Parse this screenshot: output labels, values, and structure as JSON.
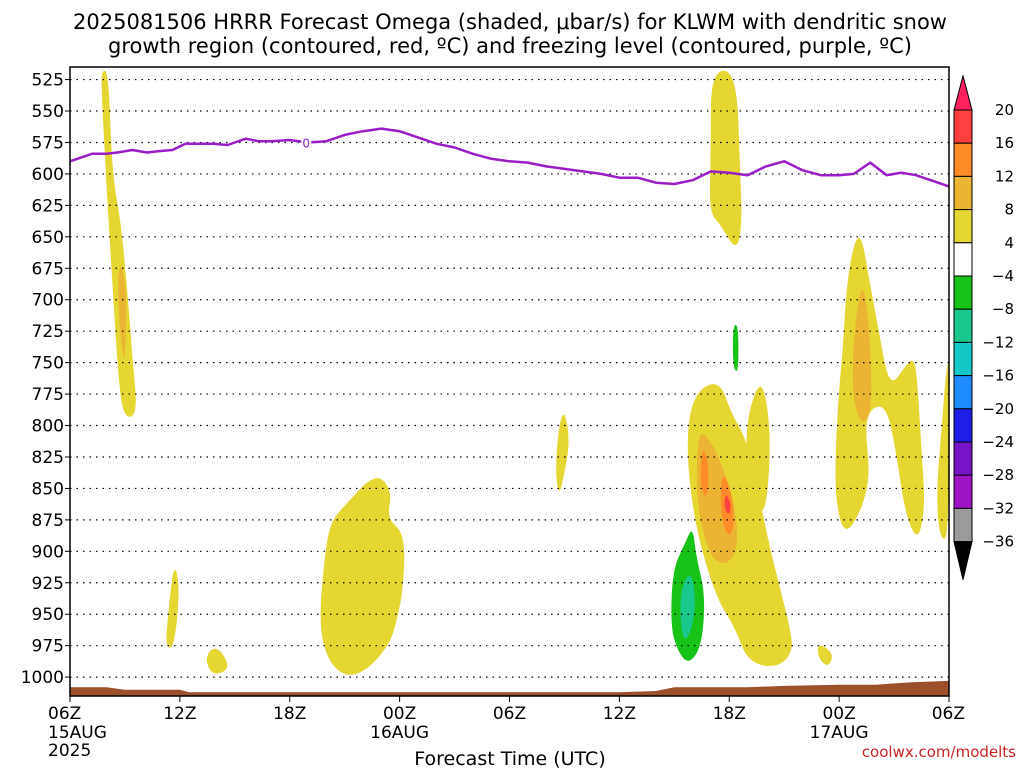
{
  "chart_data": {
    "type": "heatmap",
    "title_line1": "2025081506 HRRR Forecast Omega (shaded, μbar/s) for KLWM with dendritic snow",
    "title_line2": "growth region (contoured, red, ºC) and freezing level (contoured, purple, ºC)",
    "xlabel": "Forecast Time (UTC)",
    "credit": "coolwx.com/modelts",
    "y_ticks": [
      "525",
      "550",
      "575",
      "600",
      "625",
      "650",
      "675",
      "700",
      "725",
      "750",
      "775",
      "800",
      "825",
      "850",
      "875",
      "900",
      "925",
      "950",
      "975",
      "1000"
    ],
    "ylim": [
      515,
      1015
    ],
    "xlim_hours": [
      0,
      48
    ],
    "x_ticks": [
      {
        "h": 0,
        "label": "06Z",
        "sub1": "15AUG",
        "sub2": "2025"
      },
      {
        "h": 6,
        "label": "12Z",
        "sub1": "",
        "sub2": ""
      },
      {
        "h": 12,
        "label": "18Z",
        "sub1": "",
        "sub2": ""
      },
      {
        "h": 18,
        "label": "00Z",
        "sub1": "16AUG",
        "sub2": ""
      },
      {
        "h": 24,
        "label": "06Z",
        "sub1": "",
        "sub2": ""
      },
      {
        "h": 30,
        "label": "12Z",
        "sub1": "",
        "sub2": ""
      },
      {
        "h": 36,
        "label": "18Z",
        "sub1": "",
        "sub2": ""
      },
      {
        "h": 42,
        "label": "00Z",
        "sub1": "17AUG",
        "sub2": ""
      },
      {
        "h": 48,
        "label": "06Z",
        "sub1": "",
        "sub2": ""
      }
    ],
    "colorbar": {
      "levels": [
        "20",
        "16",
        "12",
        "8",
        "4",
        "−4",
        "−8",
        "−12",
        "−16",
        "−20",
        "−24",
        "−28",
        "−32",
        "−36"
      ],
      "colors": [
        "#ff2060",
        "#ff4040",
        "#ff8c28",
        "#ebb432",
        "#e6d632",
        "#ffffff",
        "#16c316",
        "#18c88c",
        "#14c8c8",
        "#1e8cff",
        "#1e1ee6",
        "#7814c8",
        "#a014c8",
        "#9b9b9b",
        "#000000"
      ]
    },
    "freezing_level": {
      "label": "0",
      "label_at": {
        "h": 12.9,
        "p": 575
      },
      "color": "#9a1dc8",
      "points": [
        [
          0,
          590
        ],
        [
          0.6,
          587
        ],
        [
          1.2,
          584
        ],
        [
          2,
          584
        ],
        [
          2.6,
          583
        ],
        [
          3.4,
          581
        ],
        [
          4.2,
          583
        ],
        [
          4.8,
          582
        ],
        [
          5.6,
          581
        ],
        [
          6.3,
          576
        ],
        [
          7,
          576
        ],
        [
          7.8,
          576
        ],
        [
          8.6,
          577
        ],
        [
          9.6,
          572
        ],
        [
          10.3,
          574
        ],
        [
          11,
          574
        ],
        [
          12,
          573
        ],
        [
          13,
          575
        ],
        [
          14,
          574
        ],
        [
          15,
          569
        ],
        [
          16,
          566
        ],
        [
          17,
          564
        ],
        [
          18,
          566
        ],
        [
          19,
          571
        ],
        [
          20,
          576
        ],
        [
          21,
          579
        ],
        [
          22,
          584
        ],
        [
          23,
          588
        ],
        [
          24,
          590
        ],
        [
          25,
          591
        ],
        [
          26,
          594
        ],
        [
          27,
          596
        ],
        [
          28,
          598
        ],
        [
          29,
          600
        ],
        [
          30,
          603
        ],
        [
          31,
          603
        ],
        [
          32,
          607
        ],
        [
          33,
          608
        ],
        [
          34,
          605
        ],
        [
          35,
          598
        ],
        [
          36,
          599
        ],
        [
          37,
          601
        ],
        [
          38,
          594
        ],
        [
          39,
          590
        ],
        [
          40,
          597
        ],
        [
          41,
          601
        ],
        [
          42,
          601
        ],
        [
          42.8,
          600
        ],
        [
          43.7,
          591
        ],
        [
          44.6,
          601
        ],
        [
          45.4,
          599
        ],
        [
          46.2,
          601
        ],
        [
          47,
          605
        ],
        [
          48,
          610
        ]
      ]
    },
    "omega_regions": [
      {
        "v": 4,
        "pts": [
          [
            1.7,
            518
          ],
          [
            2.1,
            518
          ],
          [
            2.3,
            600
          ],
          [
            2.8,
            640
          ],
          [
            3.2,
            705
          ],
          [
            3.4,
            745
          ],
          [
            3.7,
            792
          ],
          [
            2.9,
            794
          ],
          [
            2.6,
            755
          ],
          [
            2.2,
            660
          ],
          [
            1.9,
            585
          ],
          [
            1.75,
            540
          ]
        ]
      },
      {
        "v": 8,
        "pts": [
          [
            2.7,
            667
          ],
          [
            3.1,
            690
          ],
          [
            3.0,
            752
          ],
          [
            2.8,
            735
          ],
          [
            2.6,
            700
          ]
        ]
      },
      {
        "v": 4,
        "pts": [
          [
            35.0,
            518
          ],
          [
            36.4,
            518
          ],
          [
            36.6,
            600
          ],
          [
            36.7,
            640
          ],
          [
            36.4,
            662
          ],
          [
            35.5,
            640
          ],
          [
            34.9,
            630
          ],
          [
            35.0,
            580
          ]
        ]
      },
      {
        "v": 4,
        "pts": [
          [
            16.7,
            837
          ],
          [
            17.6,
            852
          ],
          [
            17.3,
            874
          ],
          [
            18.3,
            886
          ],
          [
            18.2,
            930
          ],
          [
            17.8,
            958
          ],
          [
            17.4,
            975
          ],
          [
            16.2,
            995
          ],
          [
            15.0,
            1000
          ],
          [
            14.0,
            985
          ],
          [
            13.6,
            955
          ],
          [
            13.9,
            905
          ],
          [
            14.2,
            878
          ],
          [
            14.9,
            865
          ]
        ]
      },
      {
        "v": 4,
        "pts": [
          [
            26.7,
            857
          ],
          [
            26.5,
            835
          ],
          [
            26.7,
            800
          ],
          [
            27.0,
            787
          ],
          [
            27.3,
            812
          ],
          [
            27.0,
            838
          ]
        ]
      },
      {
        "v": 4,
        "pts": [
          [
            5.7,
            908
          ],
          [
            6.0,
            930
          ],
          [
            5.7,
            976
          ],
          [
            5.2,
            977
          ],
          [
            5.4,
            943
          ]
        ]
      },
      {
        "v": 4,
        "pts": [
          [
            7.7,
            977
          ],
          [
            8.2,
            978
          ],
          [
            8.7,
            991
          ],
          [
            8.3,
            997
          ],
          [
            7.7,
            997
          ],
          [
            7.4,
            986
          ]
        ]
      },
      {
        "v": 4,
        "pts": [
          [
            34.4,
            770
          ],
          [
            35.5,
            765
          ],
          [
            36.1,
            790
          ],
          [
            36.9,
            810
          ],
          [
            37.5,
            845
          ],
          [
            38.1,
            890
          ],
          [
            38.7,
            925
          ],
          [
            39.3,
            960
          ],
          [
            39.5,
            980
          ],
          [
            38.6,
            993
          ],
          [
            37.0,
            988
          ],
          [
            36.3,
            960
          ],
          [
            35.4,
            940
          ],
          [
            34.5,
            900
          ],
          [
            34.0,
            865
          ],
          [
            33.7,
            825
          ],
          [
            33.8,
            790
          ]
        ]
      },
      {
        "v": 8,
        "pts": [
          [
            34.3,
            803
          ],
          [
            35.0,
            812
          ],
          [
            35.7,
            835
          ],
          [
            36.3,
            862
          ],
          [
            36.5,
            895
          ],
          [
            36.0,
            910
          ],
          [
            35.1,
            908
          ],
          [
            34.5,
            882
          ],
          [
            34.2,
            850
          ]
        ]
      },
      {
        "v": 12,
        "pts": [
          [
            34.5,
            815
          ],
          [
            34.9,
            830
          ],
          [
            34.8,
            860
          ],
          [
            34.4,
            848
          ]
        ]
      },
      {
        "v": 12,
        "pts": [
          [
            35.6,
            835
          ],
          [
            36.1,
            852
          ],
          [
            36.3,
            880
          ],
          [
            35.9,
            890
          ],
          [
            35.5,
            868
          ]
        ]
      },
      {
        "v": 16,
        "pts": [
          [
            35.8,
            853
          ],
          [
            36.1,
            862
          ],
          [
            36.0,
            872
          ],
          [
            35.7,
            865
          ]
        ]
      },
      {
        "v": 4,
        "pts": [
          [
            37.0,
            790
          ],
          [
            37.8,
            760
          ],
          [
            38.3,
            808
          ],
          [
            38.0,
            872
          ],
          [
            37.4,
            860
          ],
          [
            36.9,
            830
          ]
        ]
      },
      {
        "v": -4,
        "pts": [
          [
            36.2,
            720
          ],
          [
            36.5,
            720
          ],
          [
            36.5,
            759
          ],
          [
            36.2,
            754
          ]
        ]
      },
      {
        "v": -4,
        "pts": [
          [
            34.0,
            880
          ],
          [
            34.2,
            905
          ],
          [
            34.7,
            935
          ],
          [
            34.5,
            975
          ],
          [
            33.8,
            990
          ],
          [
            33.2,
            980
          ],
          [
            32.8,
            960
          ],
          [
            32.9,
            915
          ],
          [
            33.6,
            893
          ]
        ]
      },
      {
        "v": -8,
        "pts": [
          [
            33.9,
            915
          ],
          [
            34.2,
            940
          ],
          [
            33.9,
            965
          ],
          [
            33.5,
            972
          ],
          [
            33.3,
            950
          ],
          [
            33.4,
            928
          ]
        ]
      },
      {
        "v": 4,
        "pts": [
          [
            42.2,
            740
          ],
          [
            42.4,
            690
          ],
          [
            42.8,
            655
          ],
          [
            43.2,
            648
          ],
          [
            43.6,
            680
          ],
          [
            44.1,
            720
          ],
          [
            44.6,
            760
          ],
          [
            45.0,
            766
          ],
          [
            45.5,
            755
          ],
          [
            46.1,
            745
          ],
          [
            46.3,
            770
          ],
          [
            46.5,
            820
          ],
          [
            46.7,
            865
          ],
          [
            46.3,
            893
          ],
          [
            45.6,
            870
          ],
          [
            45.1,
            820
          ],
          [
            44.6,
            785
          ],
          [
            43.8,
            785
          ],
          [
            43.4,
            800
          ],
          [
            43.7,
            840
          ],
          [
            43.2,
            868
          ],
          [
            42.3,
            888
          ],
          [
            41.8,
            860
          ],
          [
            41.8,
            820
          ],
          [
            42.0,
            770
          ]
        ]
      },
      {
        "v": 8,
        "pts": [
          [
            42.8,
            724
          ],
          [
            43.3,
            681
          ],
          [
            43.7,
            730
          ],
          [
            43.8,
            790
          ],
          [
            43.2,
            800
          ],
          [
            42.7,
            775
          ]
        ]
      },
      {
        "v": 4,
        "pts": [
          [
            48.0,
            742
          ],
          [
            48.0,
            890
          ],
          [
            47.5,
            890
          ],
          [
            47.3,
            855
          ],
          [
            47.6,
            802
          ],
          [
            47.8,
            763
          ]
        ]
      },
      {
        "v": 4,
        "pts": [
          [
            40.8,
            975
          ],
          [
            41.2,
            975
          ],
          [
            41.7,
            983
          ],
          [
            41.4,
            992
          ],
          [
            40.9,
            986
          ]
        ]
      }
    ],
    "surface_band": {
      "color": "#9c4f2b",
      "points": [
        [
          0,
          1008
        ],
        [
          2,
          1008
        ],
        [
          3,
          1010
        ],
        [
          6,
          1010
        ],
        [
          6.5,
          1012
        ],
        [
          10,
          1012
        ],
        [
          20,
          1012
        ],
        [
          30,
          1012
        ],
        [
          32,
          1011
        ],
        [
          33,
          1008
        ],
        [
          37,
          1008
        ],
        [
          39,
          1007
        ],
        [
          42,
          1006
        ],
        [
          44,
          1006
        ],
        [
          46,
          1004
        ],
        [
          48,
          1003
        ]
      ]
    }
  }
}
